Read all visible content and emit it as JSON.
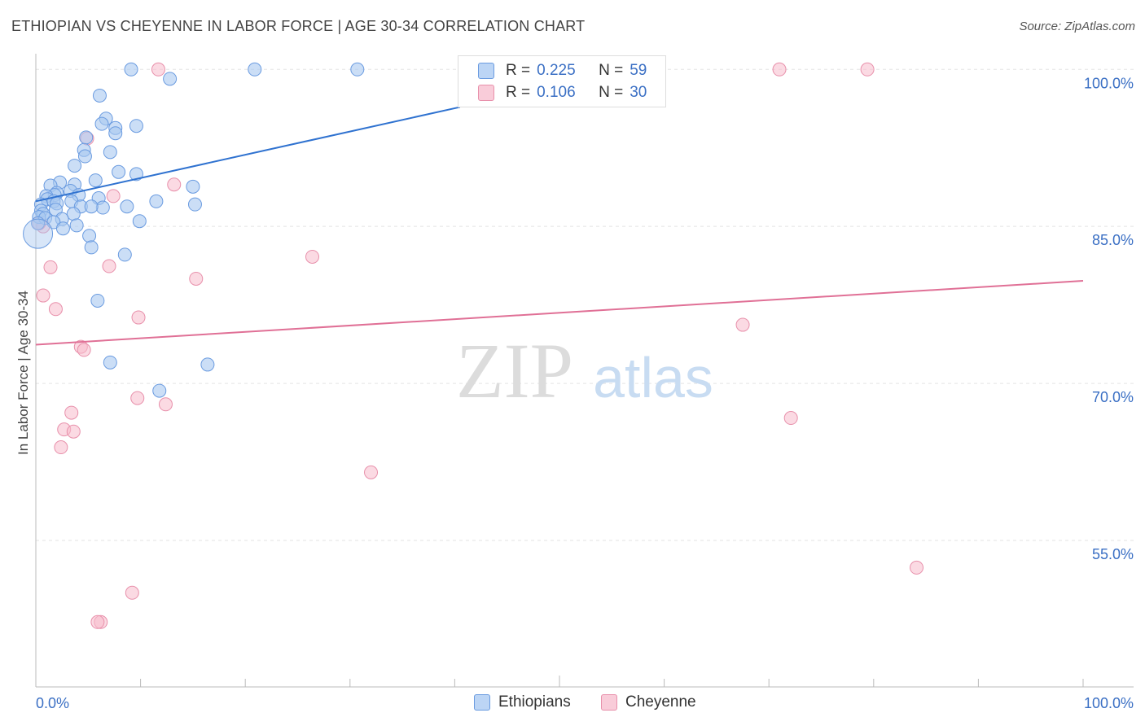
{
  "header": {
    "title": "ETHIOPIAN VS CHEYENNE IN LABOR FORCE | AGE 30-34 CORRELATION CHART",
    "source": "Source: ZipAtlas.com"
  },
  "watermark": {
    "zip": "ZIP",
    "atlas": "atlas"
  },
  "legend": {
    "r_label": "R =",
    "n_label": "N =",
    "rows": [
      {
        "name": "Ethiopians",
        "r": "0.225",
        "n": "59"
      },
      {
        "name": "Cheyenne",
        "r": "0.106",
        "n": "30"
      }
    ]
  },
  "colors": {
    "ethiopians_fill": "#a8c8f0",
    "ethiopians_stroke": "#6a9be0",
    "ethiopians_line": "#2f72d0",
    "cheyenne_fill": "#f7bccc",
    "cheyenne_stroke": "#e890ab",
    "cheyenne_line": "#e07096",
    "tick_label": "#3a6fc4",
    "grid": "#e3e3e3"
  },
  "chart_data": {
    "type": "scatter",
    "title": "ETHIOPIAN VS CHEYENNE IN LABOR FORCE | AGE 30-34 CORRELATION CHART",
    "xlabel": "",
    "ylabel": "In Labor Force | Age 30-34",
    "xlim": [
      0,
      100
    ],
    "ylim": [
      41,
      101.5
    ],
    "x_tick_labels": [
      {
        "value": 0,
        "label": "0.0%"
      },
      {
        "value": 100,
        "label": "100.0%"
      }
    ],
    "y_tick_labels": [
      {
        "value": 100,
        "label": "100.0%"
      },
      {
        "value": 85,
        "label": "85.0%"
      },
      {
        "value": 70,
        "label": "70.0%"
      },
      {
        "value": 55,
        "label": "55.0%"
      }
    ],
    "legend_position": "top-center",
    "series": [
      {
        "name": "Ethiopians",
        "r": 0.225,
        "n": 59,
        "trend": {
          "x": [
            0,
            40.5
          ],
          "y": [
            87.4,
            96.4
          ]
        },
        "points": [
          [
            9.1,
            100
          ],
          [
            20.9,
            100
          ],
          [
            30.7,
            100
          ],
          [
            12.8,
            99.1
          ],
          [
            6.1,
            97.5
          ],
          [
            6.7,
            95.3
          ],
          [
            6.3,
            94.8
          ],
          [
            7.6,
            94.4
          ],
          [
            9.6,
            94.6
          ],
          [
            7.6,
            93.9
          ],
          [
            4.8,
            93.5
          ],
          [
            4.6,
            92.3
          ],
          [
            7.1,
            92.1
          ],
          [
            4.7,
            91.7
          ],
          [
            3.7,
            90.8
          ],
          [
            7.9,
            90.2
          ],
          [
            9.6,
            90
          ],
          [
            5.7,
            89.4
          ],
          [
            2.3,
            89.2
          ],
          [
            1.4,
            88.9
          ],
          [
            3.7,
            89
          ],
          [
            15,
            88.8
          ],
          [
            3.3,
            88.4
          ],
          [
            2.0,
            88.2
          ],
          [
            4.1,
            88.0
          ],
          [
            1.8,
            88.0
          ],
          [
            1.0,
            87.9
          ],
          [
            1.1,
            87.6
          ],
          [
            6.0,
            87.7
          ],
          [
            1.7,
            87.4
          ],
          [
            3.4,
            87.4
          ],
          [
            2.0,
            87.2
          ],
          [
            11.5,
            87.4
          ],
          [
            15.2,
            87.1
          ],
          [
            0.5,
            87.1
          ],
          [
            4.3,
            86.9
          ],
          [
            8.7,
            86.9
          ],
          [
            6.4,
            86.8
          ],
          [
            5.3,
            86.9
          ],
          [
            0.5,
            86.5
          ],
          [
            1.9,
            86.6
          ],
          [
            0.7,
            86.2
          ],
          [
            3.6,
            86.2
          ],
          [
            0.3,
            85.9
          ],
          [
            0.9,
            85.8
          ],
          [
            2.5,
            85.7
          ],
          [
            9.9,
            85.5
          ],
          [
            0.2,
            85.3
          ],
          [
            1.7,
            85.4
          ],
          [
            3.9,
            85.1
          ],
          [
            2.6,
            84.8
          ],
          [
            5.1,
            84.1
          ],
          [
            5.3,
            83.0
          ],
          [
            8.5,
            82.3
          ],
          [
            5.9,
            77.9
          ],
          [
            7.1,
            72.0
          ],
          [
            16.4,
            71.8
          ],
          [
            11.8,
            69.3
          ],
          [
            0.2,
            84.3
          ]
        ]
      },
      {
        "name": "Cheyenne",
        "r": 0.106,
        "n": 30,
        "trend": {
          "x": [
            0,
            100
          ],
          "y": [
            73.7,
            79.8
          ]
        },
        "points": [
          [
            11.7,
            100
          ],
          [
            71,
            100
          ],
          [
            79.4,
            100
          ],
          [
            4.9,
            93.4
          ],
          [
            7.4,
            87.9
          ],
          [
            13.2,
            89.0
          ],
          [
            0.7,
            85.0
          ],
          [
            26.4,
            82.1
          ],
          [
            1.4,
            81.1
          ],
          [
            7.0,
            81.2
          ],
          [
            15.3,
            80.0
          ],
          [
            0.7,
            78.4
          ],
          [
            1.9,
            77.1
          ],
          [
            9.8,
            76.3
          ],
          [
            67.5,
            75.6
          ],
          [
            4.3,
            73.5
          ],
          [
            4.6,
            73.2
          ],
          [
            9.7,
            68.6
          ],
          [
            12.4,
            68.0
          ],
          [
            3.4,
            67.2
          ],
          [
            72.1,
            66.7
          ],
          [
            2.7,
            65.6
          ],
          [
            3.6,
            65.4
          ],
          [
            2.4,
            63.9
          ],
          [
            32.0,
            61.5
          ],
          [
            84.1,
            52.4
          ],
          [
            9.2,
            50.0
          ],
          [
            6.2,
            47.2
          ],
          [
            5.9,
            47.2
          ],
          [
            0.3,
            85.3
          ]
        ]
      }
    ]
  }
}
